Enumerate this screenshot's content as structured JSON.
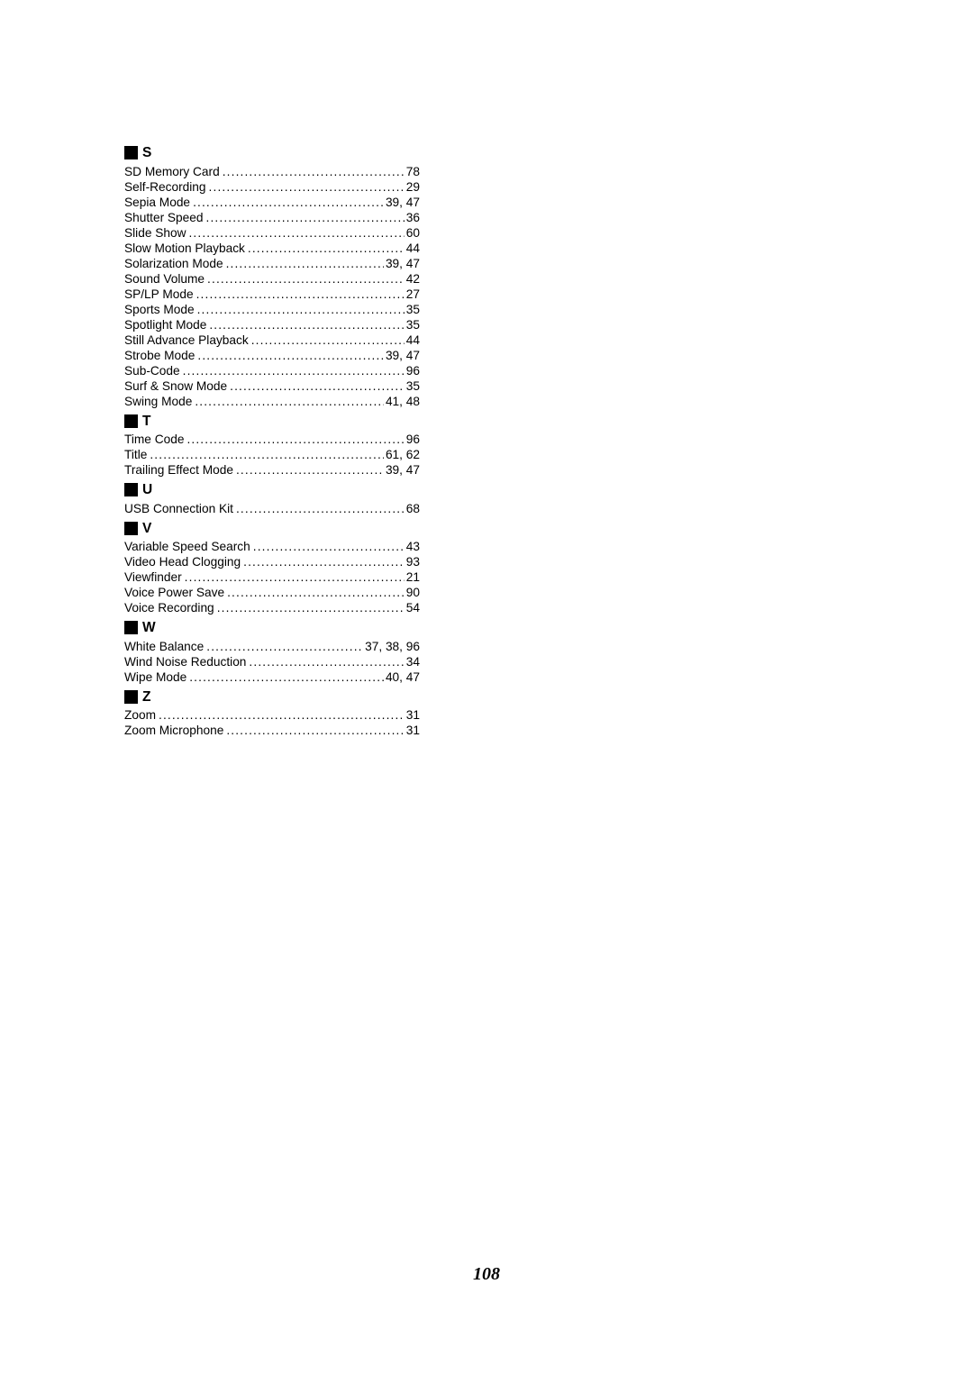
{
  "page_number": "108",
  "sections": [
    {
      "letter": "S",
      "entries": [
        {
          "term": "SD Memory Card",
          "pages": "78"
        },
        {
          "term": "Self-Recording",
          "pages": "29"
        },
        {
          "term": "Sepia Mode",
          "pages": "39, 47"
        },
        {
          "term": "Shutter Speed",
          "pages": "36"
        },
        {
          "term": "Slide Show",
          "pages": "60"
        },
        {
          "term": "Slow Motion Playback",
          "pages": "44"
        },
        {
          "term": "Solarization Mode",
          "pages": "39, 47"
        },
        {
          "term": "Sound Volume",
          "pages": "42"
        },
        {
          "term": "SP/LP Mode",
          "pages": "27"
        },
        {
          "term": "Sports Mode",
          "pages": "35"
        },
        {
          "term": "Spotlight Mode",
          "pages": "35"
        },
        {
          "term": "Still Advance Playback",
          "pages": "44"
        },
        {
          "term": "Strobe Mode",
          "pages": "39, 47"
        },
        {
          "term": "Sub-Code",
          "pages": "96"
        },
        {
          "term": "Surf & Snow Mode",
          "pages": "35"
        },
        {
          "term": "Swing Mode",
          "pages": "41, 48"
        }
      ]
    },
    {
      "letter": "T",
      "entries": [
        {
          "term": "Time Code",
          "pages": "96"
        },
        {
          "term": "Title",
          "pages": "61, 62"
        },
        {
          "term": "Trailing Effect Mode",
          "pages": "39, 47"
        }
      ]
    },
    {
      "letter": "U",
      "entries": [
        {
          "term": "USB Connection Kit",
          "pages": "68"
        }
      ]
    },
    {
      "letter": "V",
      "entries": [
        {
          "term": "Variable Speed Search",
          "pages": "43"
        },
        {
          "term": "Video Head Clogging",
          "pages": "93"
        },
        {
          "term": "Viewfinder",
          "pages": "21"
        },
        {
          "term": "Voice Power Save",
          "pages": "90"
        },
        {
          "term": "Voice Recording",
          "pages": "54"
        }
      ]
    },
    {
      "letter": "W",
      "entries": [
        {
          "term": "White Balance",
          "pages": "37, 38, 96"
        },
        {
          "term": "Wind Noise Reduction",
          "pages": "34"
        },
        {
          "term": "Wipe Mode",
          "pages": "40, 47"
        }
      ]
    },
    {
      "letter": "Z",
      "entries": [
        {
          "term": "Zoom",
          "pages": "31"
        },
        {
          "term": "Zoom Microphone",
          "pages": "31"
        }
      ]
    }
  ]
}
